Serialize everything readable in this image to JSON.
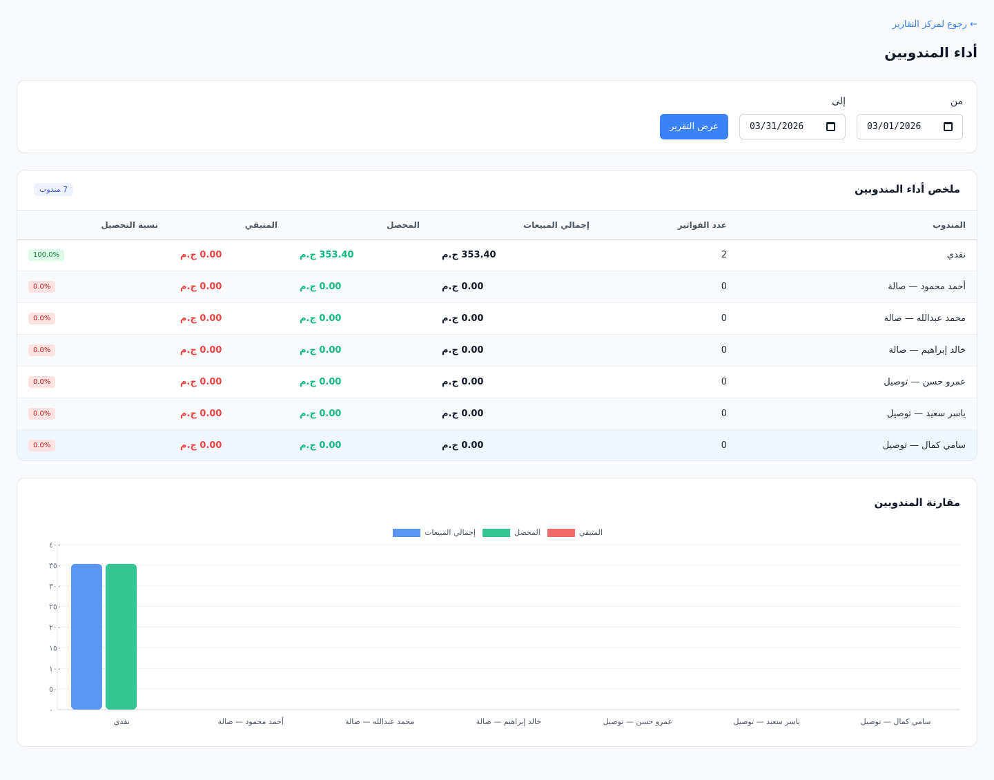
{
  "header": {
    "back_label": "← رجوع لمركز التقارير",
    "title": "أداء المندوبين"
  },
  "filters": {
    "from_label": "من",
    "to_label": "إلى",
    "from_value": "03/01/2026",
    "to_value": "03/31/2026",
    "submit_label": "عرض التقرير"
  },
  "summary": {
    "title": "ملخص أداء المندوبين",
    "count_badge": "7 مندوب",
    "columns": [
      "المندوب",
      "عدد الفواتير",
      "إجمالي المبيعات",
      "المحصل",
      "المتبقي",
      "نسبة التحصيل"
    ],
    "rows": [
      {
        "name": "نقدي",
        "invoices": "2",
        "sales": "353.40 ج.م",
        "paid": "353.40 ج.م",
        "remaining": "0.00 ج.م",
        "rate": "100.0%",
        "rate_status": "good"
      },
      {
        "name": "أحمد محمود — صالة",
        "invoices": "0",
        "sales": "0.00 ج.م",
        "paid": "0.00 ج.م",
        "remaining": "0.00 ج.م",
        "rate": "0.0%",
        "rate_status": "bad"
      },
      {
        "name": "محمد عبدالله — صالة",
        "invoices": "0",
        "sales": "0.00 ج.م",
        "paid": "0.00 ج.م",
        "remaining": "0.00 ج.م",
        "rate": "0.0%",
        "rate_status": "bad"
      },
      {
        "name": "خالد إبراهيم — صالة",
        "invoices": "0",
        "sales": "0.00 ج.م",
        "paid": "0.00 ج.م",
        "remaining": "0.00 ج.م",
        "rate": "0.0%",
        "rate_status": "bad"
      },
      {
        "name": "عمرو حسن — توصيل",
        "invoices": "0",
        "sales": "0.00 ج.م",
        "paid": "0.00 ج.م",
        "remaining": "0.00 ج.م",
        "rate": "0.0%",
        "rate_status": "bad"
      },
      {
        "name": "ياسر سعيد — توصيل",
        "invoices": "0",
        "sales": "0.00 ج.م",
        "paid": "0.00 ج.م",
        "remaining": "0.00 ج.م",
        "rate": "0.0%",
        "rate_status": "bad"
      },
      {
        "name": "سامي كمال — توصيل",
        "invoices": "0",
        "sales": "0.00 ج.م",
        "paid": "0.00 ج.م",
        "remaining": "0.00 ج.م",
        "rate": "0.0%",
        "rate_status": "bad"
      }
    ]
  },
  "chart_section": {
    "title": "مقارنة المندوبين"
  },
  "colors": {
    "sales": "#5b96f5",
    "paid": "#34c592",
    "remaining": "#f26b6b"
  },
  "chart_data": {
    "type": "bar",
    "categories": [
      "نقدي",
      "أحمد محمود — صالة",
      "محمد عبدالله — صالة",
      "خالد إبراهيم — صالة",
      "عمرو حسن — توصيل",
      "ياسر سعيد — توصيل",
      "سامي كمال — توصيل"
    ],
    "series": [
      {
        "name": "إجمالي المبيعات",
        "values": [
          353.4,
          0,
          0,
          0,
          0,
          0,
          0
        ]
      },
      {
        "name": "المحصل",
        "values": [
          353.4,
          0,
          0,
          0,
          0,
          0,
          0
        ]
      },
      {
        "name": "المتبقي",
        "values": [
          0,
          0,
          0,
          0,
          0,
          0,
          0
        ]
      }
    ],
    "yticks": [
      "٠",
      "٥٠",
      "١٠٠",
      "١٥٠",
      "٢٠٠",
      "٢٥٠",
      "٣٠٠",
      "٣٥٠",
      "٤٠٠"
    ],
    "ylim": [
      0,
      400
    ],
    "legend_position": "top-center",
    "grid": true
  }
}
